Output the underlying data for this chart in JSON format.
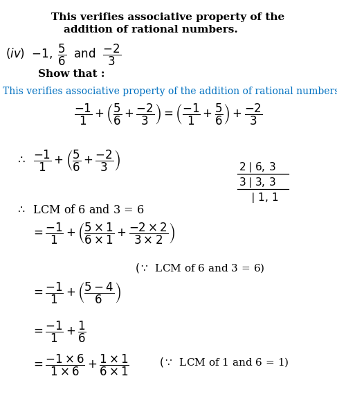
{
  "bg_color": "#ffffff",
  "title_line1": "This verifies associative property of the",
  "title_line2": "addition of rational numbers.",
  "iv_line": "(iv) −1,",
  "show_that": "Show that :",
  "blue_text": "This verifies associative property of the addition of rational numbers.",
  "lcm_note1": "(∵ LCM of 6 and 3 = 6)",
  "lcm_note2": "(∵ LCM of 1 and 6 = 1)",
  "lcm_statement": "∴ LCM of 6 and 3 = 6",
  "text_color": "#000000",
  "blue_color": "#0070c0"
}
